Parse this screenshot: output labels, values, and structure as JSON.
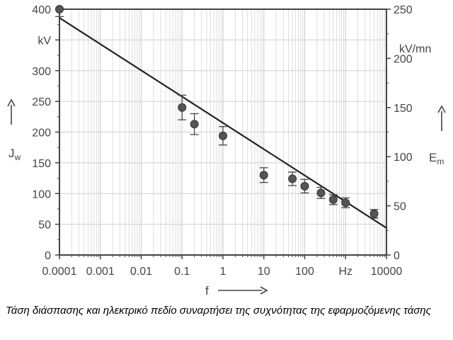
{
  "caption": "Τάση διάσπασης και ηλεκτρικό πεδίο συναρτήσει της συχνότητας της εφαρμοζόμενης τάσης",
  "chart_data": {
    "type": "scatter",
    "x_scale": "log",
    "xlim": [
      0.0001,
      10000
    ],
    "x_ticks": [
      0.0001,
      0.001,
      0.01,
      0.1,
      1,
      10,
      100,
      1000,
      10000
    ],
    "x_tick_labels": [
      "0.0001",
      "0.001",
      "0.01",
      "0.1",
      "1",
      "10",
      "100",
      "Hz",
      "10000"
    ],
    "xlabel": "f",
    "ylabel_left": "J",
    "ylabel_left_sub": "w",
    "ylim_left": [
      0,
      400
    ],
    "y_ticks_left": [
      0,
      50,
      100,
      150,
      200,
      250,
      300,
      350,
      400
    ],
    "y_tick_labels_left": [
      "0",
      "50",
      "100",
      "150",
      "200",
      "250",
      "300",
      "kV",
      "400"
    ],
    "ylabel_right": "E",
    "ylabel_right_sub": "m",
    "ylim_right": [
      0,
      250
    ],
    "y_ticks_right": [
      0,
      50,
      100,
      150,
      200,
      250
    ],
    "y_tick_labels_right": [
      "0",
      "50",
      "100",
      "150",
      "200",
      "250"
    ],
    "right_unit": "kV/mn",
    "grid": true,
    "points": [
      {
        "x": 0.0001,
        "y": 400,
        "err": 12
      },
      {
        "x": 0.1,
        "y": 240,
        "err": 20
      },
      {
        "x": 0.2,
        "y": 213,
        "err": 17
      },
      {
        "x": 1,
        "y": 194,
        "err": 15
      },
      {
        "x": 10,
        "y": 130,
        "err": 12
      },
      {
        "x": 50,
        "y": 124,
        "err": 11
      },
      {
        "x": 100,
        "y": 112,
        "err": 11
      },
      {
        "x": 250,
        "y": 101,
        "err": 9
      },
      {
        "x": 500,
        "y": 90,
        "err": 8
      },
      {
        "x": 1000,
        "y": 85,
        "err": 8
      },
      {
        "x": 5000,
        "y": 67,
        "err": 7
      }
    ],
    "trend_line": {
      "x": [
        0.0001,
        10000
      ],
      "y": [
        386,
        44
      ]
    },
    "colors": {
      "ink": "#444444",
      "grid": "#cfcfcf",
      "marker": "#555555",
      "line": "#222222"
    }
  }
}
